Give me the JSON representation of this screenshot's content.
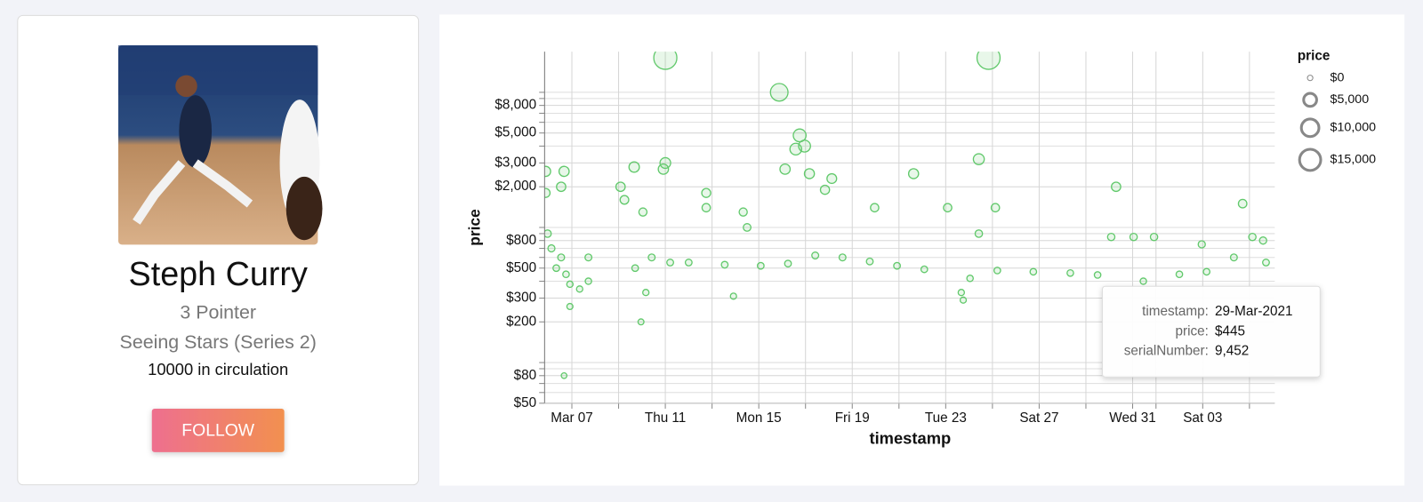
{
  "card": {
    "player": "Steph Curry",
    "play": "3 Pointer",
    "set": "Seeing Stars (Series 2)",
    "circulation": "10000 in circulation",
    "button": "FOLLOW"
  },
  "chart_data": {
    "type": "scatter",
    "x_label": "timestamp",
    "y_label": "price",
    "color": "#62c96c",
    "log_scale": true,
    "grid": true,
    "xlim": [
      "2021-03-05T20:00Z",
      "2021-04-06T02:00Z"
    ],
    "xticks": [
      {
        "value": "2021-03-07T00:00Z",
        "label": "Mar 07"
      },
      {
        "value": "2021-03-11T00:00Z",
        "label": "Thu 11"
      },
      {
        "value": "2021-03-15T00:00Z",
        "label": "Mon 15"
      },
      {
        "value": "2021-03-19T00:00Z",
        "label": "Fri 19"
      },
      {
        "value": "2021-03-23T00:00Z",
        "label": "Tue 23"
      },
      {
        "value": "2021-03-27T00:00Z",
        "label": "Sat 27"
      },
      {
        "value": "2021-03-31T00:00Z",
        "label": "Wed 31"
      },
      {
        "value": "2021-04-03T00:00Z",
        "label": "Sat 03"
      }
    ],
    "x_minor_ticks": [
      "2021-03-09T00:00Z",
      "2021-03-13T00:00Z",
      "2021-03-17T00:00Z",
      "2021-03-21T00:00Z",
      "2021-03-25T00:00Z",
      "2021-03-29T00:00Z",
      "2021-04-01T00:00Z",
      "2021-04-05T00:00Z"
    ],
    "ylim": [
      50,
      20000
    ],
    "yticks": [
      {
        "value": 50,
        "label": "$50"
      },
      {
        "value": 80,
        "label": "$80"
      },
      {
        "value": 200,
        "label": "$200"
      },
      {
        "value": 300,
        "label": "$300"
      },
      {
        "value": 500,
        "label": "$500"
      },
      {
        "value": 800,
        "label": "$800"
      },
      {
        "value": 2000,
        "label": "$2,000"
      },
      {
        "value": 3000,
        "label": "$3,000"
      },
      {
        "value": 5000,
        "label": "$5,000"
      },
      {
        "value": 8000,
        "label": "$8,000"
      }
    ],
    "y_minor_ticks": [
      60,
      70,
      90,
      100,
      400,
      600,
      700,
      900,
      1000,
      4000,
      6000,
      7000,
      9000,
      10000
    ],
    "x": [
      "2021-03-05T21:00Z",
      "2021-03-06T16:00Z",
      "2021-03-05T21:00Z",
      "2021-03-06T13:00Z",
      "2021-03-05T23:00Z",
      "2021-03-06T03:00Z",
      "2021-03-06T08:00Z",
      "2021-03-06T13:00Z",
      "2021-03-06T18:00Z",
      "2021-03-06T22:00Z",
      "2021-03-06T22:00Z",
      "2021-03-06T16:00Z",
      "2021-03-07T08:00Z",
      "2021-03-07T17:00Z",
      "2021-03-07T17:00Z",
      "2021-03-09T02:00Z",
      "2021-03-09T06:00Z",
      "2021-03-09T16:00Z",
      "2021-03-09T17:00Z",
      "2021-03-09T23:00Z",
      "2021-03-10T01:00Z",
      "2021-03-10T04:00Z",
      "2021-03-10T10:00Z",
      "2021-03-10T22:00Z",
      "2021-03-11T00:00Z",
      "2021-03-11T00:00Z",
      "2021-03-11T05:00Z",
      "2021-03-12T00:00Z",
      "2021-03-12T18:00Z",
      "2021-03-12T18:00Z",
      "2021-03-13T13:00Z",
      "2021-03-13T22:00Z",
      "2021-03-14T08:00Z",
      "2021-03-14T12:00Z",
      "2021-03-15T02:00Z",
      "2021-03-15T21:00Z",
      "2021-03-16T03:00Z",
      "2021-03-16T06:00Z",
      "2021-03-16T14:00Z",
      "2021-03-16T18:00Z",
      "2021-03-16T23:00Z",
      "2021-03-17T04:00Z",
      "2021-03-17T10:00Z",
      "2021-03-17T20:00Z",
      "2021-03-18T03:00Z",
      "2021-03-18T14:00Z",
      "2021-03-19T18:00Z",
      "2021-03-19T23:00Z",
      "2021-03-20T22:00Z",
      "2021-03-21T15:00Z",
      "2021-03-22T02:00Z",
      "2021-03-23T02:00Z",
      "2021-03-23T16:00Z",
      "2021-03-23T18:00Z",
      "2021-03-24T01:00Z",
      "2021-03-24T10:00Z",
      "2021-03-24T10:00Z",
      "2021-03-24T20:00Z",
      "2021-03-25T03:00Z",
      "2021-03-25T05:00Z",
      "2021-03-26T18:00Z",
      "2021-03-28T08:00Z",
      "2021-03-29T12:00Z",
      "2021-03-30T02:00Z",
      "2021-03-30T07:00Z",
      "2021-03-31T01:00Z",
      "2021-03-31T11:00Z",
      "2021-03-31T22:00Z",
      "2021-04-02T00:00Z",
      "2021-04-02T23:00Z",
      "2021-04-03T04:00Z",
      "2021-04-04T08:00Z",
      "2021-04-04T17:00Z",
      "2021-04-05T03:00Z",
      "2021-04-05T14:00Z",
      "2021-04-05T17:00Z"
    ],
    "values": [
      2600,
      2600,
      1800,
      2000,
      900,
      700,
      500,
      600,
      450,
      260,
      380,
      80,
      350,
      400,
      600,
      2000,
      1600,
      2800,
      500,
      200,
      1300,
      330,
      600,
      2700,
      3000,
      18000,
      550,
      550,
      1800,
      1400,
      530,
      310,
      1300,
      1000,
      520,
      10000,
      2700,
      540,
      3800,
      4800,
      4000,
      2500,
      620,
      1900,
      2300,
      600,
      560,
      1400,
      520,
      2500,
      490,
      1400,
      330,
      290,
      420,
      3200,
      900,
      18000,
      1400,
      480,
      470,
      460,
      445,
      850,
      2000,
      850,
      400,
      850,
      450,
      750,
      470,
      600,
      1500,
      850,
      800,
      550
    ],
    "size_legend": {
      "title": "price",
      "entries": [
        {
          "value": 0,
          "label": "$0"
        },
        {
          "value": 5000,
          "label": "$5,000"
        },
        {
          "value": 10000,
          "label": "$10,000"
        },
        {
          "value": 15000,
          "label": "$15,000"
        }
      ]
    },
    "tooltip": {
      "rows": [
        {
          "label": "timestamp:",
          "value": "29-Mar-2021"
        },
        {
          "label": "price:",
          "value": "$445"
        },
        {
          "label": "serialNumber:",
          "value": "9,452"
        }
      ]
    }
  }
}
